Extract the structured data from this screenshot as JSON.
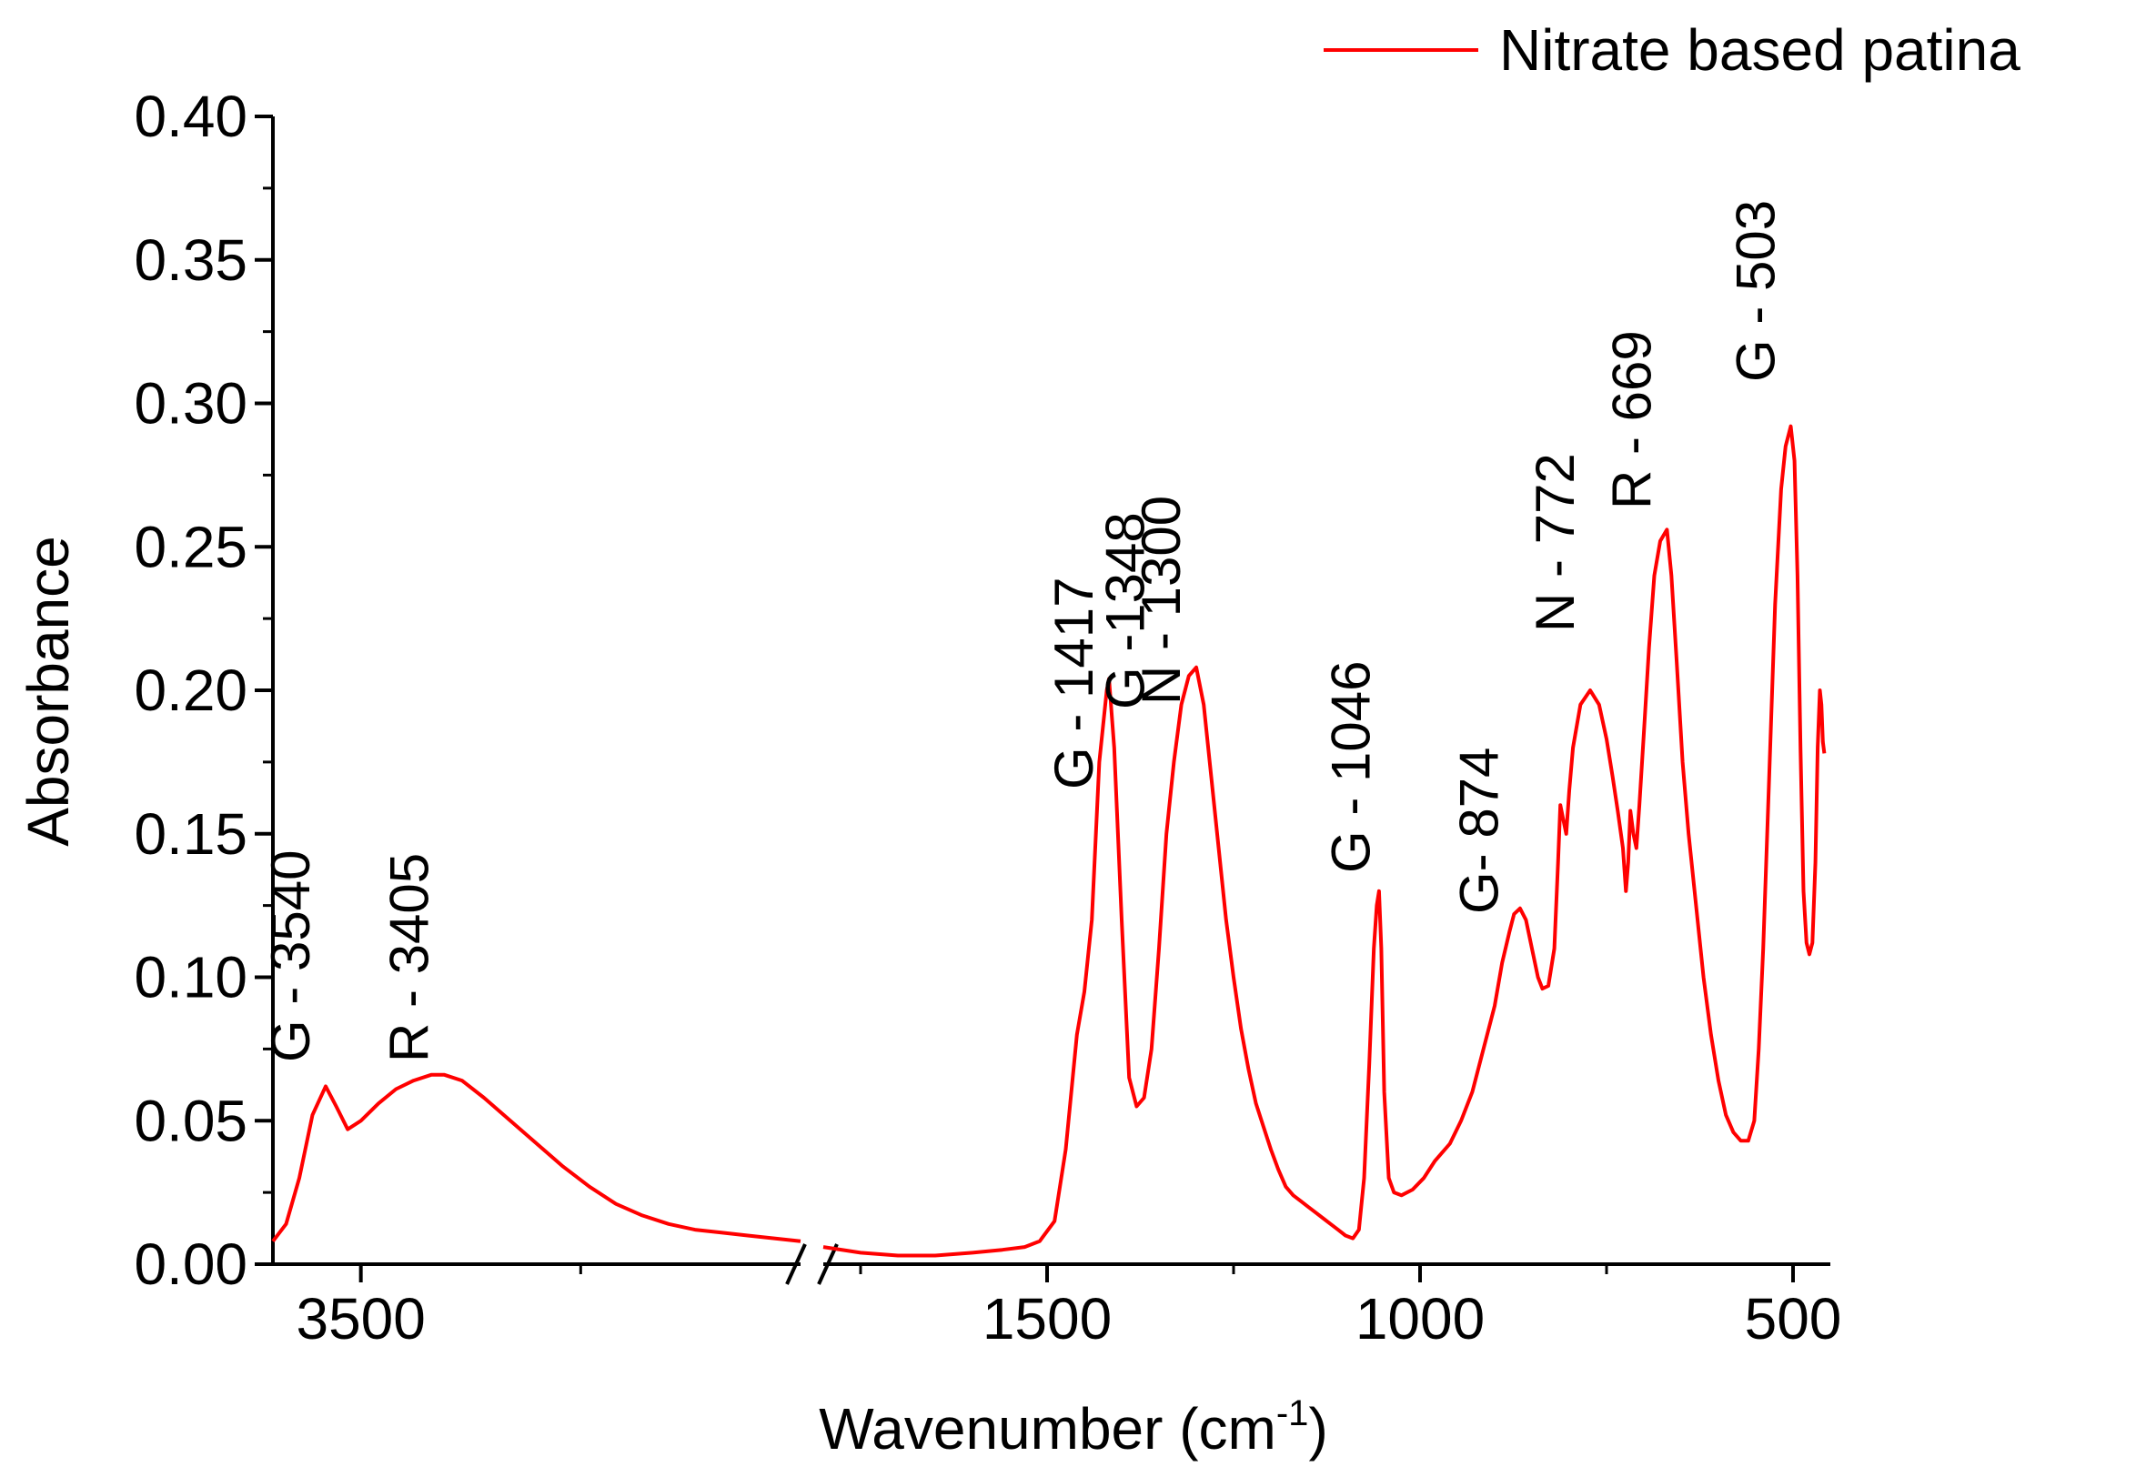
{
  "chart_data": {
    "type": "line",
    "title": "",
    "xlabel": "Wavenumber (cm",
    "xlabel_superscript": "-1",
    "xlabel_suffix": ")",
    "ylabel": "Absorbance",
    "ylim": [
      0.0,
      0.4
    ],
    "xlim_left_segment": [
      3600,
      3000
    ],
    "xlim_right_segment": [
      1800,
      450
    ],
    "axis_break": "between 3000 and 1800",
    "y_ticks": [
      "0.00",
      "0.05",
      "0.10",
      "0.15",
      "0.20",
      "0.25",
      "0.30",
      "0.35",
      "0.40"
    ],
    "x_ticks": [
      {
        "value": 3500,
        "label": "3500"
      },
      {
        "value": 1500,
        "label": "1500"
      },
      {
        "value": 1000,
        "label": "1000"
      },
      {
        "value": 500,
        "label": "500"
      }
    ],
    "legend": {
      "placement": "top-right",
      "entries": [
        "Nitrate based patina"
      ]
    },
    "series": [
      {
        "name": "Nitrate based patina",
        "color": "#ff0000",
        "segments": [
          [
            [
              3600,
              0.008
            ],
            [
              3585,
              0.014
            ],
            [
              3570,
              0.03
            ],
            [
              3555,
              0.052
            ],
            [
              3540,
              0.062
            ],
            [
              3528,
              0.055
            ],
            [
              3515,
              0.047
            ],
            [
              3500,
              0.05
            ],
            [
              3480,
              0.056
            ],
            [
              3460,
              0.061
            ],
            [
              3440,
              0.064
            ],
            [
              3420,
              0.066
            ],
            [
              3405,
              0.066
            ],
            [
              3385,
              0.064
            ],
            [
              3360,
              0.058
            ],
            [
              3330,
              0.05
            ],
            [
              3300,
              0.042
            ],
            [
              3270,
              0.034
            ],
            [
              3240,
              0.027
            ],
            [
              3210,
              0.021
            ],
            [
              3180,
              0.017
            ],
            [
              3150,
              0.014
            ],
            [
              3120,
              0.012
            ],
            [
              3090,
              0.011
            ],
            [
              3060,
              0.01
            ],
            [
              3030,
              0.009
            ],
            [
              3000,
              0.008
            ]
          ],
          [
            [
              1800,
              0.006
            ],
            [
              1750,
              0.004
            ],
            [
              1700,
              0.003
            ],
            [
              1650,
              0.003
            ],
            [
              1600,
              0.004
            ],
            [
              1560,
              0.005
            ],
            [
              1530,
              0.006
            ],
            [
              1510,
              0.008
            ],
            [
              1490,
              0.015
            ],
            [
              1475,
              0.04
            ],
            [
              1460,
              0.08
            ],
            [
              1450,
              0.095
            ],
            [
              1440,
              0.12
            ],
            [
              1430,
              0.175
            ],
            [
              1420,
              0.2
            ],
            [
              1417,
              0.204
            ],
            [
              1410,
              0.18
            ],
            [
              1400,
              0.12
            ],
            [
              1390,
              0.065
            ],
            [
              1380,
              0.055
            ],
            [
              1370,
              0.058
            ],
            [
              1360,
              0.075
            ],
            [
              1350,
              0.11
            ],
            [
              1340,
              0.15
            ],
            [
              1330,
              0.175
            ],
            [
              1320,
              0.195
            ],
            [
              1310,
              0.205
            ],
            [
              1300,
              0.208
            ],
            [
              1290,
              0.195
            ],
            [
              1280,
              0.17
            ],
            [
              1270,
              0.145
            ],
            [
              1260,
              0.12
            ],
            [
              1250,
              0.1
            ],
            [
              1240,
              0.082
            ],
            [
              1230,
              0.068
            ],
            [
              1220,
              0.056
            ],
            [
              1210,
              0.048
            ],
            [
              1200,
              0.04
            ],
            [
              1190,
              0.033
            ],
            [
              1180,
              0.027
            ],
            [
              1170,
              0.024
            ],
            [
              1160,
              0.022
            ],
            [
              1150,
              0.02
            ],
            [
              1140,
              0.018
            ],
            [
              1130,
              0.016
            ],
            [
              1120,
              0.014
            ],
            [
              1110,
              0.012
            ],
            [
              1100,
              0.01
            ],
            [
              1090,
              0.009
            ],
            [
              1082,
              0.012
            ],
            [
              1075,
              0.03
            ],
            [
              1068,
              0.07
            ],
            [
              1062,
              0.11
            ],
            [
              1058,
              0.125
            ],
            [
              1055,
              0.13
            ],
            [
              1052,
              0.11
            ],
            [
              1048,
              0.06
            ],
            [
              1042,
              0.03
            ],
            [
              1035,
              0.025
            ],
            [
              1025,
              0.024
            ],
            [
              1010,
              0.026
            ],
            [
              995,
              0.03
            ],
            [
              980,
              0.036
            ],
            [
              960,
              0.042
            ],
            [
              945,
              0.05
            ],
            [
              930,
              0.06
            ],
            [
              915,
              0.075
            ],
            [
              900,
              0.09
            ],
            [
              890,
              0.105
            ],
            [
              880,
              0.116
            ],
            [
              874,
              0.122
            ],
            [
              866,
              0.124
            ],
            [
              858,
              0.12
            ],
            [
              850,
              0.11
            ],
            [
              842,
              0.1
            ],
            [
              836,
              0.096
            ],
            [
              828,
              0.097
            ],
            [
              820,
              0.11
            ],
            [
              815,
              0.14
            ],
            [
              812,
              0.16
            ],
            [
              808,
              0.155
            ],
            [
              804,
              0.15
            ],
            [
              800,
              0.165
            ],
            [
              795,
              0.18
            ],
            [
              785,
              0.195
            ],
            [
              772,
              0.2
            ],
            [
              760,
              0.195
            ],
            [
              750,
              0.183
            ],
            [
              742,
              0.17
            ],
            [
              735,
              0.158
            ],
            [
              728,
              0.145
            ],
            [
              724,
              0.13
            ],
            [
              721,
              0.14
            ],
            [
              718,
              0.158
            ],
            [
              714,
              0.15
            ],
            [
              710,
              0.145
            ],
            [
              706,
              0.16
            ],
            [
              700,
              0.185
            ],
            [
              693,
              0.215
            ],
            [
              686,
              0.24
            ],
            [
              678,
              0.252
            ],
            [
              669,
              0.256
            ],
            [
              663,
              0.24
            ],
            [
              656,
              0.21
            ],
            [
              648,
              0.175
            ],
            [
              640,
              0.15
            ],
            [
              630,
              0.125
            ],
            [
              620,
              0.1
            ],
            [
              610,
              0.08
            ],
            [
              600,
              0.064
            ],
            [
              590,
              0.052
            ],
            [
              580,
              0.046
            ],
            [
              570,
              0.043
            ],
            [
              560,
              0.043
            ],
            [
              552,
              0.05
            ],
            [
              546,
              0.075
            ],
            [
              540,
              0.11
            ],
            [
              532,
              0.17
            ],
            [
              524,
              0.23
            ],
            [
              516,
              0.27
            ],
            [
              510,
              0.285
            ],
            [
              503,
              0.292
            ],
            [
              498,
              0.28
            ],
            [
              494,
              0.24
            ],
            [
              490,
              0.18
            ],
            [
              486,
              0.13
            ],
            [
              482,
              0.112
            ],
            [
              478,
              0.108
            ],
            [
              474,
              0.112
            ],
            [
              470,
              0.14
            ],
            [
              467,
              0.18
            ],
            [
              464,
              0.2
            ],
            [
              462,
              0.195
            ],
            [
              460,
              0.182
            ],
            [
              458,
              0.178
            ]
          ]
        ]
      }
    ],
    "annotations": [
      {
        "text": "G - 3540",
        "x": 3540
      },
      {
        "text": "R - 3405",
        "x": 3405
      },
      {
        "text": "G - 1417",
        "x": 1417
      },
      {
        "text": "G -1348",
        "x": 1348
      },
      {
        "text": "N - 1300",
        "x": 1300
      },
      {
        "text": "G - 1046",
        "x": 1046
      },
      {
        "text": "G- 874",
        "x": 874
      },
      {
        "text": "N - 772",
        "x": 772
      },
      {
        "text": "R - 669",
        "x": 669
      },
      {
        "text": "G - 503",
        "x": 503
      }
    ]
  }
}
